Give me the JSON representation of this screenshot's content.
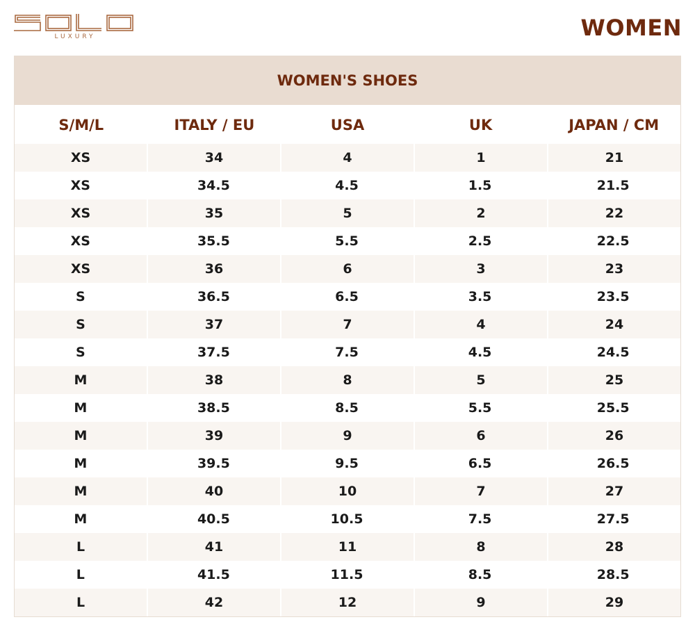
{
  "header": {
    "logo_text": "SOLO",
    "logo_sub": "LUXURY",
    "title": "WOMEN"
  },
  "table": {
    "caption": "WOMEN'S SHOES",
    "columns": [
      "S/M/L",
      "ITALY / EU",
      "USA",
      "UK",
      "JAPAN / CM"
    ],
    "rows": [
      [
        "XS",
        "34",
        "4",
        "1",
        "21"
      ],
      [
        "XS",
        "34.5",
        "4.5",
        "1.5",
        "21.5"
      ],
      [
        "XS",
        "35",
        "5",
        "2",
        "22"
      ],
      [
        "XS",
        "35.5",
        "5.5",
        "2.5",
        "22.5"
      ],
      [
        "XS",
        "36",
        "6",
        "3",
        "23"
      ],
      [
        "S",
        "36.5",
        "6.5",
        "3.5",
        "23.5"
      ],
      [
        "S",
        "37",
        "7",
        "4",
        "24"
      ],
      [
        "S",
        "37.5",
        "7.5",
        "4.5",
        "24.5"
      ],
      [
        "M",
        "38",
        "8",
        "5",
        "25"
      ],
      [
        "M",
        "38.5",
        "8.5",
        "5.5",
        "25.5"
      ],
      [
        "M",
        "39",
        "9",
        "6",
        "26"
      ],
      [
        "M",
        "39.5",
        "9.5",
        "6.5",
        "26.5"
      ],
      [
        "M",
        "40",
        "10",
        "7",
        "27"
      ],
      [
        "M",
        "40.5",
        "10.5",
        "7.5",
        "27.5"
      ],
      [
        "L",
        "41",
        "11",
        "8",
        "28"
      ],
      [
        "L",
        "41.5",
        "11.5",
        "8.5",
        "28.5"
      ],
      [
        "L",
        "42",
        "12",
        "9",
        "29"
      ]
    ]
  },
  "colors": {
    "brand": "#6e2a0e",
    "logo": "#a9683f",
    "caption_bg": "#e9dcd1",
    "stripe": "#f9f5f1"
  }
}
